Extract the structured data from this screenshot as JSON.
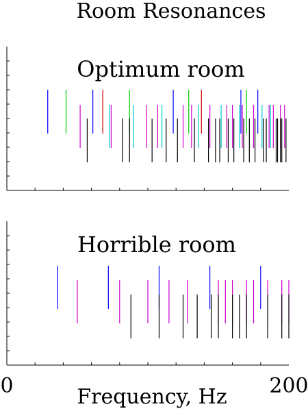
{
  "chart_data": [
    {
      "type": "line",
      "title": "Optimum room",
      "xlim": [
        0,
        200
      ],
      "series": [
        {
          "color": "#0000ff",
          "x": [
            29,
            61,
            118,
            166,
            178
          ]
        },
        {
          "color": "#00cc00",
          "x": [
            42,
            87,
            129,
            170
          ]
        },
        {
          "color": "#cc0000",
          "x": [
            68,
            138
          ]
        },
        {
          "color": "#00cccc",
          "x": [
            73,
            90,
            110,
            136,
            152,
            165,
            181,
            187
          ]
        },
        {
          "color": "#cc00cc",
          "x": [
            52,
            74,
            99,
            107,
            125,
            131,
            144,
            156,
            160,
            167,
            175,
            186,
            189,
            194,
            197
          ]
        },
        {
          "color": "#000000",
          "x": [
            57,
            82,
            87,
            103,
            113,
            121,
            133,
            143,
            148,
            151,
            157,
            161,
            168,
            172,
            176,
            182,
            184,
            191,
            192,
            194,
            195,
            198
          ]
        }
      ]
    },
    {
      "type": "line",
      "title": "Horrible room",
      "xlim": [
        0,
        200
      ],
      "series": [
        {
          "color": "#0000ff",
          "x": [
            36,
            72,
            108,
            144,
            180
          ]
        },
        {
          "color": "#cc00cc",
          "x": [
            50,
            80,
            100,
            115,
            128,
            150,
            155,
            160,
            170,
            175,
            185,
            195,
            200
          ]
        },
        {
          "color": "#000000",
          "x": [
            88,
            108,
            125,
            135,
            145,
            150,
            160,
            165,
            170,
            185,
            195,
            200
          ]
        }
      ]
    }
  ],
  "title": "Room Resonances",
  "xlabel": "Frequency, Hz",
  "xtick_min": "0",
  "xtick_max": "200"
}
